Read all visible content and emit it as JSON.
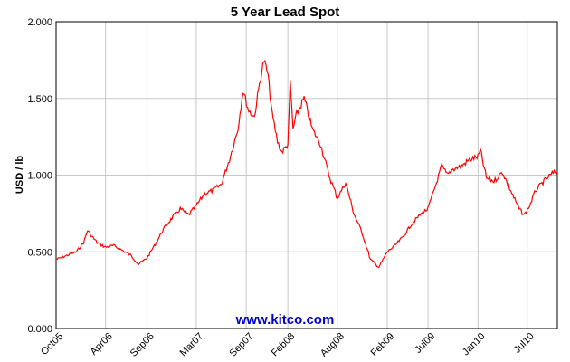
{
  "chart_data": {
    "type": "line",
    "title": "5 Year Lead Spot",
    "xlabel": "",
    "ylabel": "USD / lb",
    "ylim": [
      0.0,
      2.0
    ],
    "y_ticks": [
      "0.000",
      "0.500",
      "1.000",
      "1.500",
      "2.000"
    ],
    "x_ticks": [
      "Oct05",
      "Apr06",
      "Sep06",
      "Mar07",
      "Sep07",
      "Feb08",
      "Aug08",
      "Feb09",
      "Jul09",
      "Jan10",
      "Jul10"
    ],
    "x_range": [
      "2005-10-01",
      "2010-10-20"
    ],
    "grid": true,
    "legend": "none",
    "watermark": "www.kitco.com",
    "colors": {
      "series": "#ff0000",
      "grid": "#c8c8c8",
      "watermark": "#0000cc"
    },
    "series": [
      {
        "points": [
          [
            "2005-10-01",
            0.45
          ],
          [
            "2005-11-01",
            0.47
          ],
          [
            "2005-12-15",
            0.5
          ],
          [
            "2006-01-10",
            0.56
          ],
          [
            "2006-01-25",
            0.64
          ],
          [
            "2006-02-10",
            0.6
          ],
          [
            "2006-03-01",
            0.56
          ],
          [
            "2006-04-01",
            0.53
          ],
          [
            "2006-05-01",
            0.54
          ],
          [
            "2006-06-01",
            0.51
          ],
          [
            "2006-07-01",
            0.48
          ],
          [
            "2006-08-01",
            0.42
          ],
          [
            "2006-09-01",
            0.46
          ],
          [
            "2006-10-01",
            0.55
          ],
          [
            "2006-11-01",
            0.65
          ],
          [
            "2006-12-01",
            0.72
          ],
          [
            "2007-01-01",
            0.78
          ],
          [
            "2007-02-01",
            0.74
          ],
          [
            "2007-03-01",
            0.8
          ],
          [
            "2007-04-01",
            0.88
          ],
          [
            "2007-05-01",
            0.9
          ],
          [
            "2007-06-01",
            0.94
          ],
          [
            "2007-07-01",
            1.1
          ],
          [
            "2007-08-01",
            1.3
          ],
          [
            "2007-08-20",
            1.55
          ],
          [
            "2007-09-10",
            1.42
          ],
          [
            "2007-10-01",
            1.38
          ],
          [
            "2007-10-20",
            1.6
          ],
          [
            "2007-11-05",
            1.75
          ],
          [
            "2007-11-20",
            1.65
          ],
          [
            "2007-12-05",
            1.4
          ],
          [
            "2007-12-25",
            1.22
          ],
          [
            "2008-01-10",
            1.15
          ],
          [
            "2008-02-01",
            1.2
          ],
          [
            "2008-02-10",
            1.6
          ],
          [
            "2008-02-20",
            1.3
          ],
          [
            "2008-03-05",
            1.4
          ],
          [
            "2008-04-01",
            1.5
          ],
          [
            "2008-05-01",
            1.3
          ],
          [
            "2008-06-01",
            1.2
          ],
          [
            "2008-07-01",
            1.0
          ],
          [
            "2008-08-01",
            0.85
          ],
          [
            "2008-09-01",
            0.95
          ],
          [
            "2008-10-01",
            0.75
          ],
          [
            "2008-11-01",
            0.62
          ],
          [
            "2008-12-01",
            0.45
          ],
          [
            "2009-01-01",
            0.4
          ],
          [
            "2009-02-01",
            0.5
          ],
          [
            "2009-03-01",
            0.54
          ],
          [
            "2009-04-01",
            0.6
          ],
          [
            "2009-05-01",
            0.68
          ],
          [
            "2009-06-01",
            0.74
          ],
          [
            "2009-07-01",
            0.78
          ],
          [
            "2009-08-01",
            0.95
          ],
          [
            "2009-08-20",
            1.06
          ],
          [
            "2009-09-10",
            1.0
          ],
          [
            "2009-10-01",
            1.04
          ],
          [
            "2009-11-01",
            1.06
          ],
          [
            "2009-12-01",
            1.1
          ],
          [
            "2010-01-01",
            1.12
          ],
          [
            "2010-01-10",
            1.16
          ],
          [
            "2010-02-01",
            0.98
          ],
          [
            "2010-03-01",
            0.96
          ],
          [
            "2010-04-01",
            1.02
          ],
          [
            "2010-05-01",
            0.9
          ],
          [
            "2010-06-01",
            0.78
          ],
          [
            "2010-06-20",
            0.74
          ],
          [
            "2010-07-10",
            0.8
          ],
          [
            "2010-08-01",
            0.9
          ],
          [
            "2010-09-01",
            0.96
          ],
          [
            "2010-10-01",
            1.01
          ],
          [
            "2010-10-20",
            1.02
          ]
        ]
      }
    ]
  }
}
